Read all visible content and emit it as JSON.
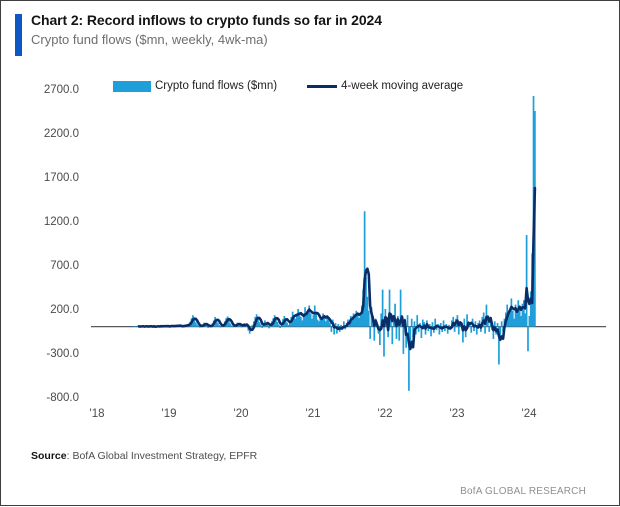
{
  "header": {
    "title": "Chart 2: Record inflows to crypto funds so far in 2024",
    "subtitle": "Crypto fund flows ($mn, weekly, 4wk-ma)",
    "accent_color": "#0e58c4"
  },
  "legend": {
    "bar_label": "Crypto fund flows ($mn)",
    "line_label": "4-week moving average"
  },
  "footer": {
    "source_label": "Source",
    "source_text": ": BofA Global Investment Strategy, EPFR",
    "brand": "BofA GLOBAL RESEARCH"
  },
  "chart_data": {
    "type": "bar",
    "title": "Crypto fund flows ($mn, weekly, 4wk-ma)",
    "ylabel": "",
    "xlabel": "",
    "ylim": [
      -800,
      2700
    ],
    "y_ticks": [
      2700,
      2200,
      1700,
      1200,
      700,
      200,
      -300,
      -800
    ],
    "y_tick_decimals": 1,
    "x_tick_labels": [
      "'18",
      "'19",
      "'20",
      "'21",
      "'22",
      "'23",
      "'24"
    ],
    "x_tick_years": [
      2018,
      2019,
      2020,
      2021,
      2022,
      2023,
      2024
    ],
    "grid": false,
    "legend_position": "top",
    "x_start_year": 2018.58,
    "frequency": "weekly",
    "colors": {
      "bars": "#1e9fda",
      "ma_line": "#0a2d68",
      "zero_axis": "#58595b"
    },
    "series": [
      {
        "name": "Crypto fund flows ($mn)",
        "type": "bar",
        "values": [
          4,
          -6,
          5,
          8,
          -5,
          3,
          10,
          -8,
          6,
          5,
          -4,
          8,
          4,
          -6,
          7,
          -9,
          12,
          6,
          -5,
          5,
          8,
          10,
          -6,
          8,
          14,
          -8,
          6,
          15,
          10,
          -6,
          12,
          18,
          10,
          6,
          -10,
          14,
          20,
          12,
          8,
          30,
          55,
          95,
          130,
          80,
          50,
          25,
          12,
          -12,
          10,
          25,
          45,
          30,
          15,
          -15,
          8,
          15,
          35,
          70,
          110,
          85,
          45,
          18,
          -10,
          12,
          30,
          60,
          95,
          115,
          70,
          35,
          12,
          -8,
          15,
          25,
          45,
          30,
          15,
          -10,
          20,
          40,
          25,
          10,
          -45,
          -80,
          -35,
          20,
          60,
          110,
          140,
          90,
          50,
          25,
          -15,
          30,
          70,
          45,
          20,
          -20,
          35,
          60,
          95,
          130,
          100,
          55,
          25,
          -15,
          40,
          85,
          120,
          80,
          45,
          20,
          60,
          110,
          170,
          130,
          90,
          140,
          200,
          160,
          110,
          70,
          150,
          220,
          140,
          180,
          240,
          150,
          90,
          130,
          240,
          160,
          80,
          60,
          120,
          90,
          150,
          110,
          60,
          130,
          90,
          40,
          -60,
          80,
          -90,
          40,
          -80,
          30,
          -60,
          20,
          -40,
          60,
          -30,
          40,
          80,
          60,
          120,
          90,
          150,
          120,
          180,
          140,
          100,
          160,
          240,
          420,
          1310,
          560,
          340,
          180,
          -140,
          220,
          120,
          -160,
          90,
          40,
          -80,
          -210,
          150,
          420,
          -340,
          200,
          100,
          -120,
          420,
          150,
          -200,
          100,
          260,
          -140,
          120,
          -160,
          420,
          80,
          -310,
          90,
          -240,
          130,
          -730,
          -180,
          90,
          -120,
          60,
          -90,
          130,
          -60,
          40,
          -130,
          80,
          50,
          -90,
          70,
          -50,
          30,
          -110,
          50,
          -70,
          90,
          -40,
          30,
          -90,
          40,
          -60,
          70,
          -50,
          30,
          -80,
          20,
          -40,
          70,
          110,
          -60,
          90,
          130,
          -90,
          60,
          40,
          -180,
          90,
          -120,
          140,
          60,
          40,
          -70,
          90,
          -50,
          60,
          -90,
          40,
          70,
          -60,
          110,
          160,
          -80,
          250,
          120,
          -60,
          80,
          -40,
          -140,
          60,
          -90,
          40,
          -430,
          -120,
          60,
          -60,
          90,
          160,
          250,
          130,
          200,
          320,
          180,
          90,
          250,
          150,
          300,
          200,
          120,
          260,
          300,
          150,
          1040,
          -280,
          120,
          400,
          830,
          2620,
          2450
        ]
      },
      {
        "name": "4-week moving average",
        "type": "line",
        "derived_from": "4-week moving average of the bar series"
      }
    ]
  }
}
